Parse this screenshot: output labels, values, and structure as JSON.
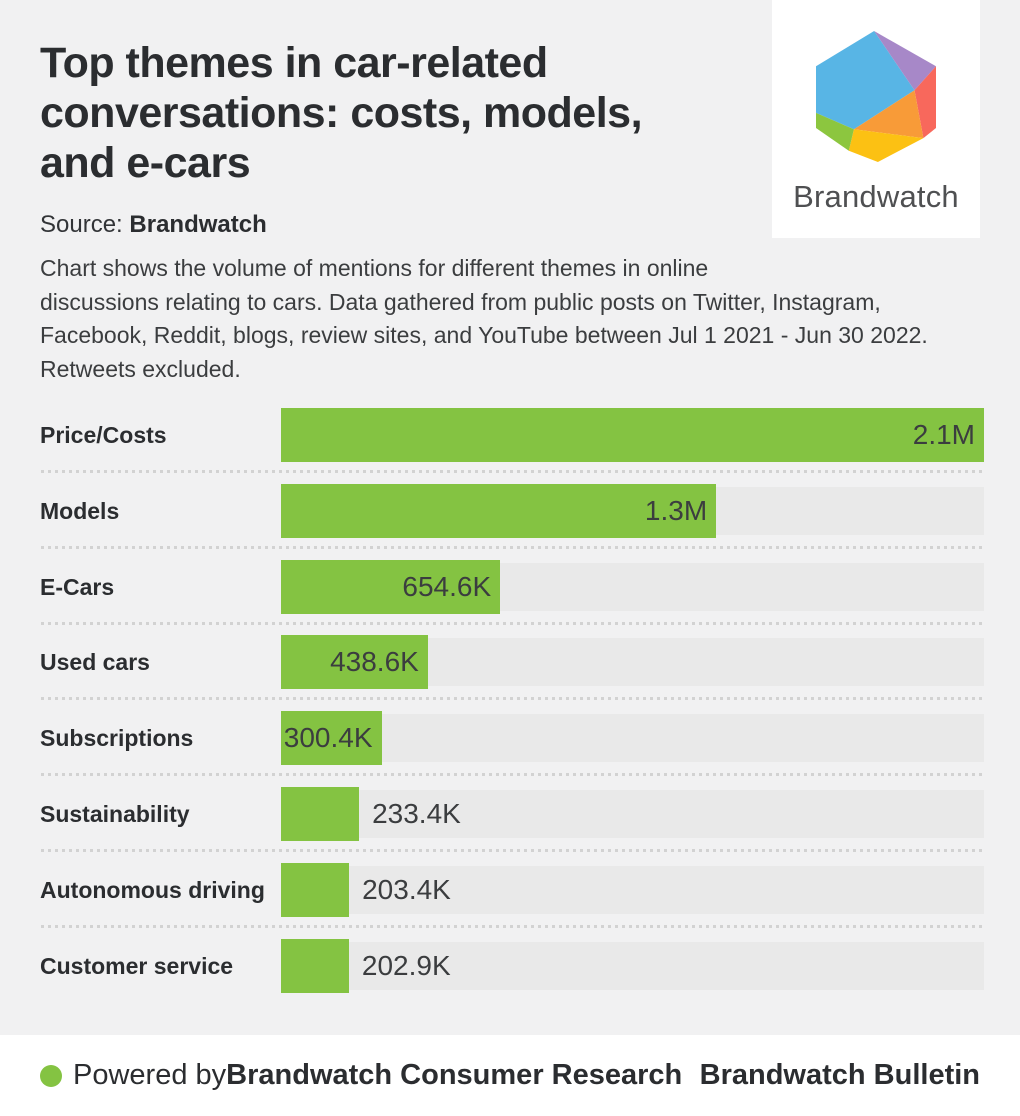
{
  "header": {
    "title": "Top themes in car-related\nconversations: costs, models,\nand e-cars",
    "source_prefix": "Source: ",
    "source_name": "Brandwatch",
    "description": "Chart shows the volume of mentions for different themes in online\ndiscussions relating to cars. Data gathered from public posts on Twitter, Instagram,\nFacebook, Reddit, blogs, review sites, and YouTube between Jul 1 2021 - Jun 30 2022.\nRetweets excluded."
  },
  "logo": {
    "brand": "Brandwatch",
    "colors": {
      "blue": "#58b5e5",
      "purple": "#a788c8",
      "red": "#f8685c",
      "orange": "#f89b38",
      "yellow": "#fcc113",
      "green": "#8cc63f"
    }
  },
  "chart_data": {
    "type": "bar",
    "orientation": "horizontal",
    "title": "Top themes in car-related conversations: costs, models, and e-cars",
    "xlabel": "",
    "ylabel": "",
    "grid": false,
    "legend": false,
    "max_value": 2100000,
    "categories": [
      "Price/Costs",
      "Models",
      "E-Cars",
      "Used cars",
      "Subscriptions",
      "Sustainability",
      "Autonomous driving",
      "Customer service"
    ],
    "values": [
      2100000,
      1300000,
      654600,
      438600,
      300400,
      233400,
      203400,
      202900
    ],
    "value_labels": [
      "2.1M",
      "1.3M",
      "654.6K",
      "438.6K",
      "300.4K",
      "233.4K",
      "203.4K",
      "202.9K"
    ],
    "value_label_inside": [
      true,
      true,
      true,
      true,
      true,
      false,
      false,
      false
    ],
    "bar_color": "#84c342",
    "track_color": "#e9e9e9"
  },
  "footer": {
    "powered_prefix": "Powered by ",
    "powered_brand": "Brandwatch Consumer Research",
    "right_text": "Brandwatch Bulletin",
    "dot_color": "#84c342"
  }
}
